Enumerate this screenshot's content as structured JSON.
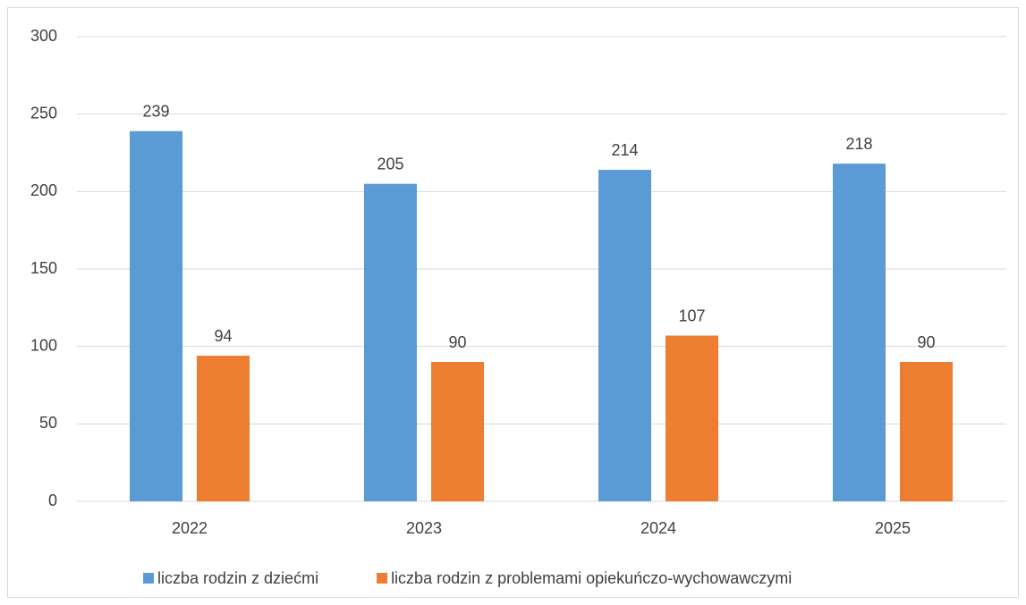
{
  "chart_data": {
    "type": "bar",
    "categories": [
      "2022",
      "2023",
      "2024",
      "2025"
    ],
    "series": [
      {
        "name": "liczba rodzin z dziećmi",
        "color": "#5b9bd5",
        "values": [
          239,
          205,
          214,
          218
        ]
      },
      {
        "name": "liczba rodzin z problemami opiekuńczo-wychowawczymi",
        "color": "#ed7d31",
        "values": [
          94,
          90,
          107,
          90
        ]
      }
    ],
    "ylim": [
      0,
      300
    ],
    "yticks": [
      0,
      50,
      100,
      150,
      200,
      250,
      300
    ],
    "grid": true,
    "legend": "bottom"
  }
}
